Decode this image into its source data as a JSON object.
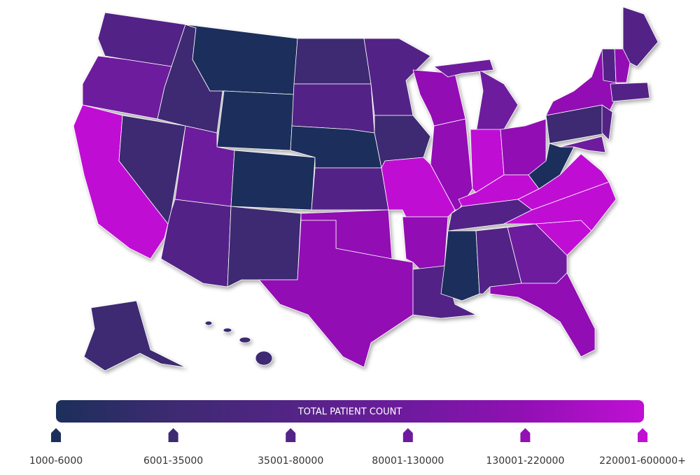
{
  "legend": {
    "title": "TOTAL PATIENT COUNT",
    "bins": [
      {
        "label": "1000-6000",
        "color": "#1c2f5b"
      },
      {
        "label": "6001-35000",
        "color": "#3e2a72"
      },
      {
        "label": "35001-80000",
        "color": "#532486"
      },
      {
        "label": "80001-130000",
        "color": "#6e1a9e"
      },
      {
        "label": "130001-220000",
        "color": "#9210b4"
      },
      {
        "label": "220001-600000+",
        "color": "#c010d4"
      }
    ]
  }
}
